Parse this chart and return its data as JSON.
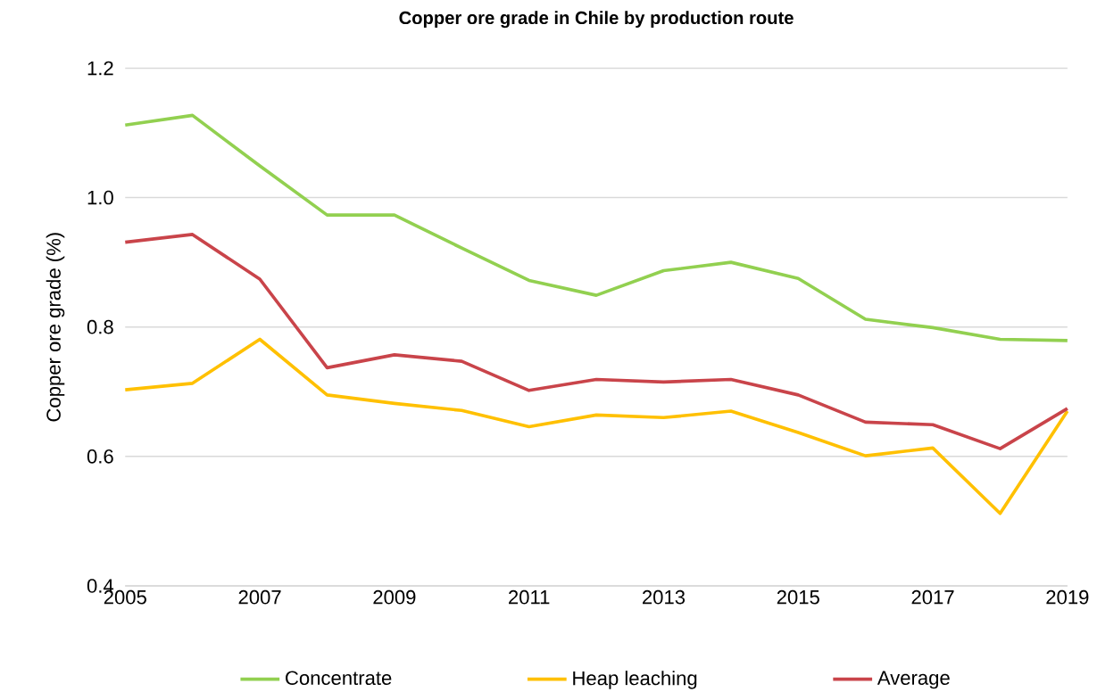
{
  "chart_data": {
    "type": "line",
    "title": "Copper ore grade in Chile by production route",
    "ylabel": "Copper ore grade (%)",
    "x": [
      2005,
      2006,
      2007,
      2008,
      2009,
      2010,
      2011,
      2012,
      2013,
      2014,
      2015,
      2016,
      2017,
      2018,
      2019
    ],
    "series": [
      {
        "name": "Concentrate",
        "color": "#92d050",
        "values": [
          1.112,
          1.127,
          1.049,
          0.973,
          0.973,
          0.922,
          0.872,
          0.849,
          0.887,
          0.9,
          0.875,
          0.812,
          0.799,
          0.781,
          0.779
        ]
      },
      {
        "name": "Heap leaching",
        "color": "#ffc000",
        "values": [
          0.703,
          0.713,
          0.781,
          0.695,
          0.682,
          0.671,
          0.646,
          0.664,
          0.66,
          0.67,
          0.637,
          0.601,
          0.613,
          0.512,
          0.67
        ]
      },
      {
        "name": "Average",
        "color": "#c9444a",
        "values": [
          0.931,
          0.943,
          0.874,
          0.737,
          0.757,
          0.747,
          0.702,
          0.719,
          0.715,
          0.719,
          0.695,
          0.653,
          0.649,
          0.612,
          0.674
        ]
      }
    ],
    "xlim": [
      2005,
      2019
    ],
    "xticks": [
      2005,
      2007,
      2009,
      2011,
      2013,
      2015,
      2017,
      2019
    ],
    "ylim": [
      0.4,
      1.2
    ],
    "yticks": [
      {
        "value": 0.4,
        "label": "0.4"
      },
      {
        "value": 0.6,
        "label": "0.6"
      },
      {
        "value": 0.8,
        "label": "0.8"
      },
      {
        "value": 1.0,
        "label": "1.0"
      },
      {
        "value": 1.2,
        "label": "1.2"
      }
    ],
    "grid": "y",
    "legend": "bottom",
    "marker": "none",
    "line_style": "solid"
  }
}
